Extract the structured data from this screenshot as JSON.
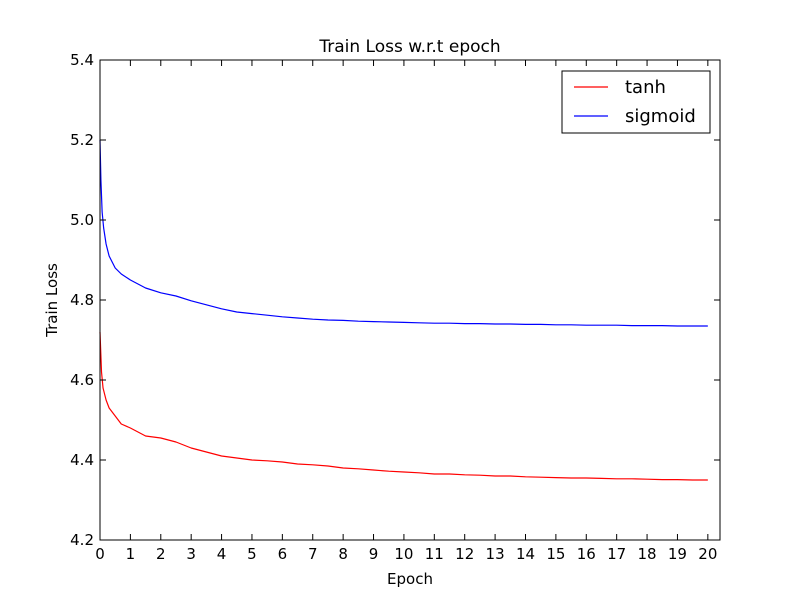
{
  "chart_data": {
    "type": "line",
    "title": "Train Loss w.r.t epoch",
    "xlabel": "Epoch",
    "ylabel": "Train Loss",
    "xlim": [
      0,
      20.4
    ],
    "ylim": [
      4.2,
      5.4
    ],
    "xticks": [
      0,
      1,
      2,
      3,
      4,
      5,
      6,
      7,
      8,
      9,
      10,
      11,
      12,
      13,
      14,
      15,
      16,
      17,
      18,
      19,
      20
    ],
    "yticks": [
      4.2,
      4.4,
      4.6,
      4.8,
      5.0,
      5.2,
      5.4
    ],
    "ytick_labels": [
      "4.2",
      "4.4",
      "4.6",
      "4.8",
      "5.0",
      "5.2",
      "5.4"
    ],
    "grid": false,
    "legend_position": "top-right",
    "series": [
      {
        "name": "tanh",
        "color": "#ff0000",
        "x": [
          0,
          0.05,
          0.1,
          0.2,
          0.3,
          0.5,
          0.7,
          1,
          1.5,
          2,
          2.5,
          3,
          3.5,
          4,
          4.5,
          5,
          5.5,
          6,
          6.5,
          7,
          7.5,
          8,
          8.5,
          9,
          9.5,
          10,
          10.5,
          11,
          11.5,
          12,
          12.5,
          13,
          13.5,
          14,
          14.5,
          15,
          15.5,
          16,
          16.5,
          17,
          17.5,
          18,
          18.5,
          19,
          19.5,
          20
        ],
        "values": [
          4.72,
          4.62,
          4.58,
          4.55,
          4.53,
          4.51,
          4.49,
          4.48,
          4.46,
          4.455,
          4.445,
          4.43,
          4.42,
          4.41,
          4.405,
          4.4,
          4.398,
          4.395,
          4.39,
          4.388,
          4.385,
          4.38,
          4.378,
          4.375,
          4.372,
          4.37,
          4.368,
          4.365,
          4.365,
          4.363,
          4.362,
          4.36,
          4.36,
          4.358,
          4.357,
          4.356,
          4.355,
          4.355,
          4.354,
          4.353,
          4.353,
          4.352,
          4.351,
          4.351,
          4.35,
          4.35
        ]
      },
      {
        "name": "sigmoid",
        "color": "#0000ff",
        "x": [
          0,
          0.03,
          0.07,
          0.12,
          0.2,
          0.3,
          0.5,
          0.7,
          1,
          1.5,
          2,
          2.5,
          3,
          3.5,
          4,
          4.5,
          5,
          5.5,
          6,
          6.5,
          7,
          7.5,
          8,
          8.5,
          9,
          9.5,
          10,
          10.5,
          11,
          11.5,
          12,
          12.5,
          13,
          13.5,
          14,
          14.5,
          15,
          15.5,
          16,
          16.5,
          17,
          17.5,
          18,
          18.5,
          19,
          19.5,
          20
        ],
        "values": [
          5.2,
          5.1,
          5.02,
          4.98,
          4.94,
          4.91,
          4.88,
          4.865,
          4.85,
          4.83,
          4.818,
          4.81,
          4.798,
          4.788,
          4.778,
          4.77,
          4.766,
          4.762,
          4.758,
          4.755,
          4.752,
          4.75,
          4.749,
          4.747,
          4.746,
          4.745,
          4.744,
          4.743,
          4.742,
          4.742,
          4.741,
          4.741,
          4.74,
          4.74,
          4.739,
          4.739,
          4.738,
          4.738,
          4.737,
          4.737,
          4.737,
          4.736,
          4.736,
          4.736,
          4.735,
          4.735,
          4.735
        ]
      }
    ]
  }
}
